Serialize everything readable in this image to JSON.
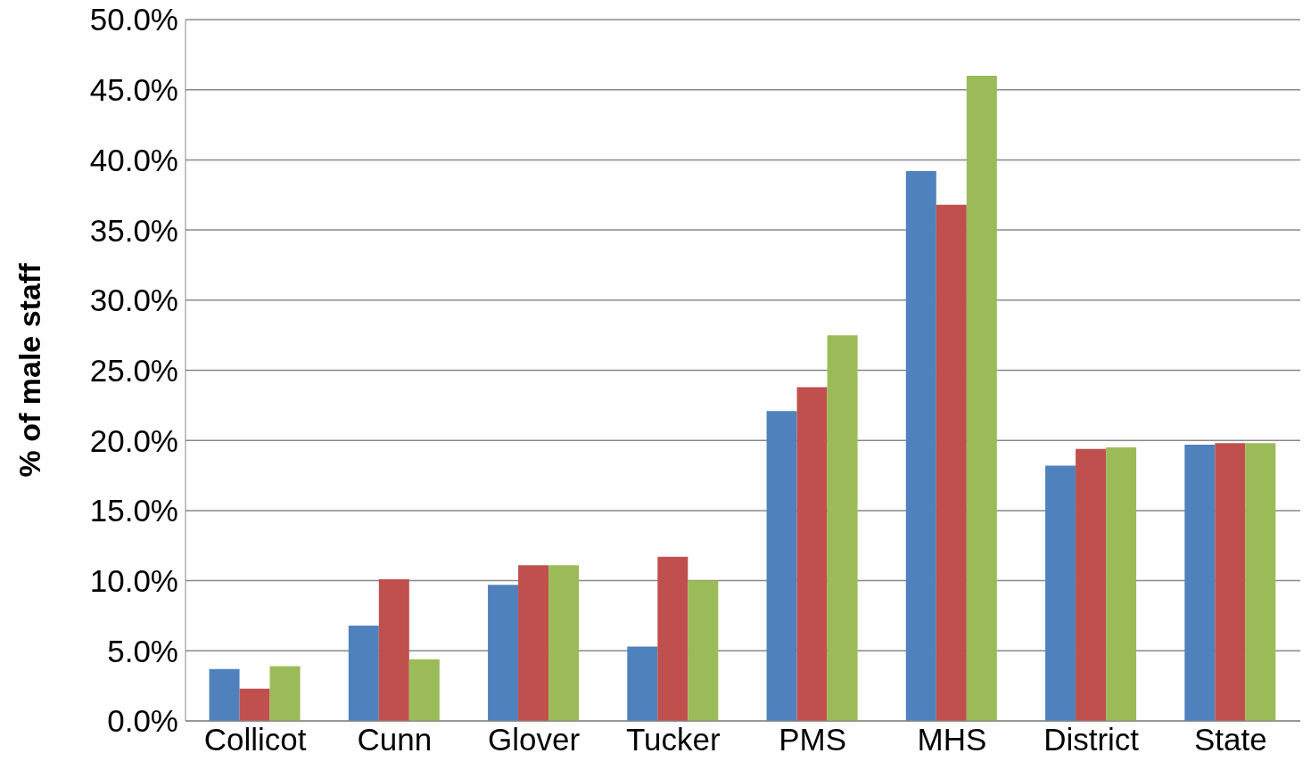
{
  "chart_data": {
    "type": "bar",
    "ylabel": "% of male staff",
    "categories": [
      "Collicot",
      "Cunn",
      "Glover",
      "Tucker",
      "PMS",
      "MHS",
      "District",
      "State"
    ],
    "series": [
      {
        "color": "#4f81bd",
        "values": [
          3.7,
          6.8,
          9.7,
          5.3,
          22.1,
          39.2,
          18.2,
          19.7
        ]
      },
      {
        "color": "#c0504d",
        "values": [
          2.3,
          10.1,
          11.1,
          11.7,
          23.8,
          36.8,
          19.4,
          19.8
        ]
      },
      {
        "color": "#9bbb59",
        "values": [
          3.9,
          4.4,
          11.1,
          10.0,
          27.5,
          46.0,
          19.5,
          19.8
        ]
      }
    ],
    "ylim": [
      0,
      50
    ],
    "yticks": [
      {
        "value": 0,
        "label": "0.0%"
      },
      {
        "value": 5,
        "label": "5.0%"
      },
      {
        "value": 10,
        "label": "10.0%"
      },
      {
        "value": 15,
        "label": "15.0%"
      },
      {
        "value": 20,
        "label": "20.0%"
      },
      {
        "value": 25,
        "label": "25.0%"
      },
      {
        "value": 30,
        "label": "30.0%"
      },
      {
        "value": 35,
        "label": "35.0%"
      },
      {
        "value": 40,
        "label": "40.0%"
      },
      {
        "value": 45,
        "label": "45.0%"
      },
      {
        "value": 50,
        "label": "50.0%"
      }
    ],
    "grid": "y",
    "legend": false
  }
}
